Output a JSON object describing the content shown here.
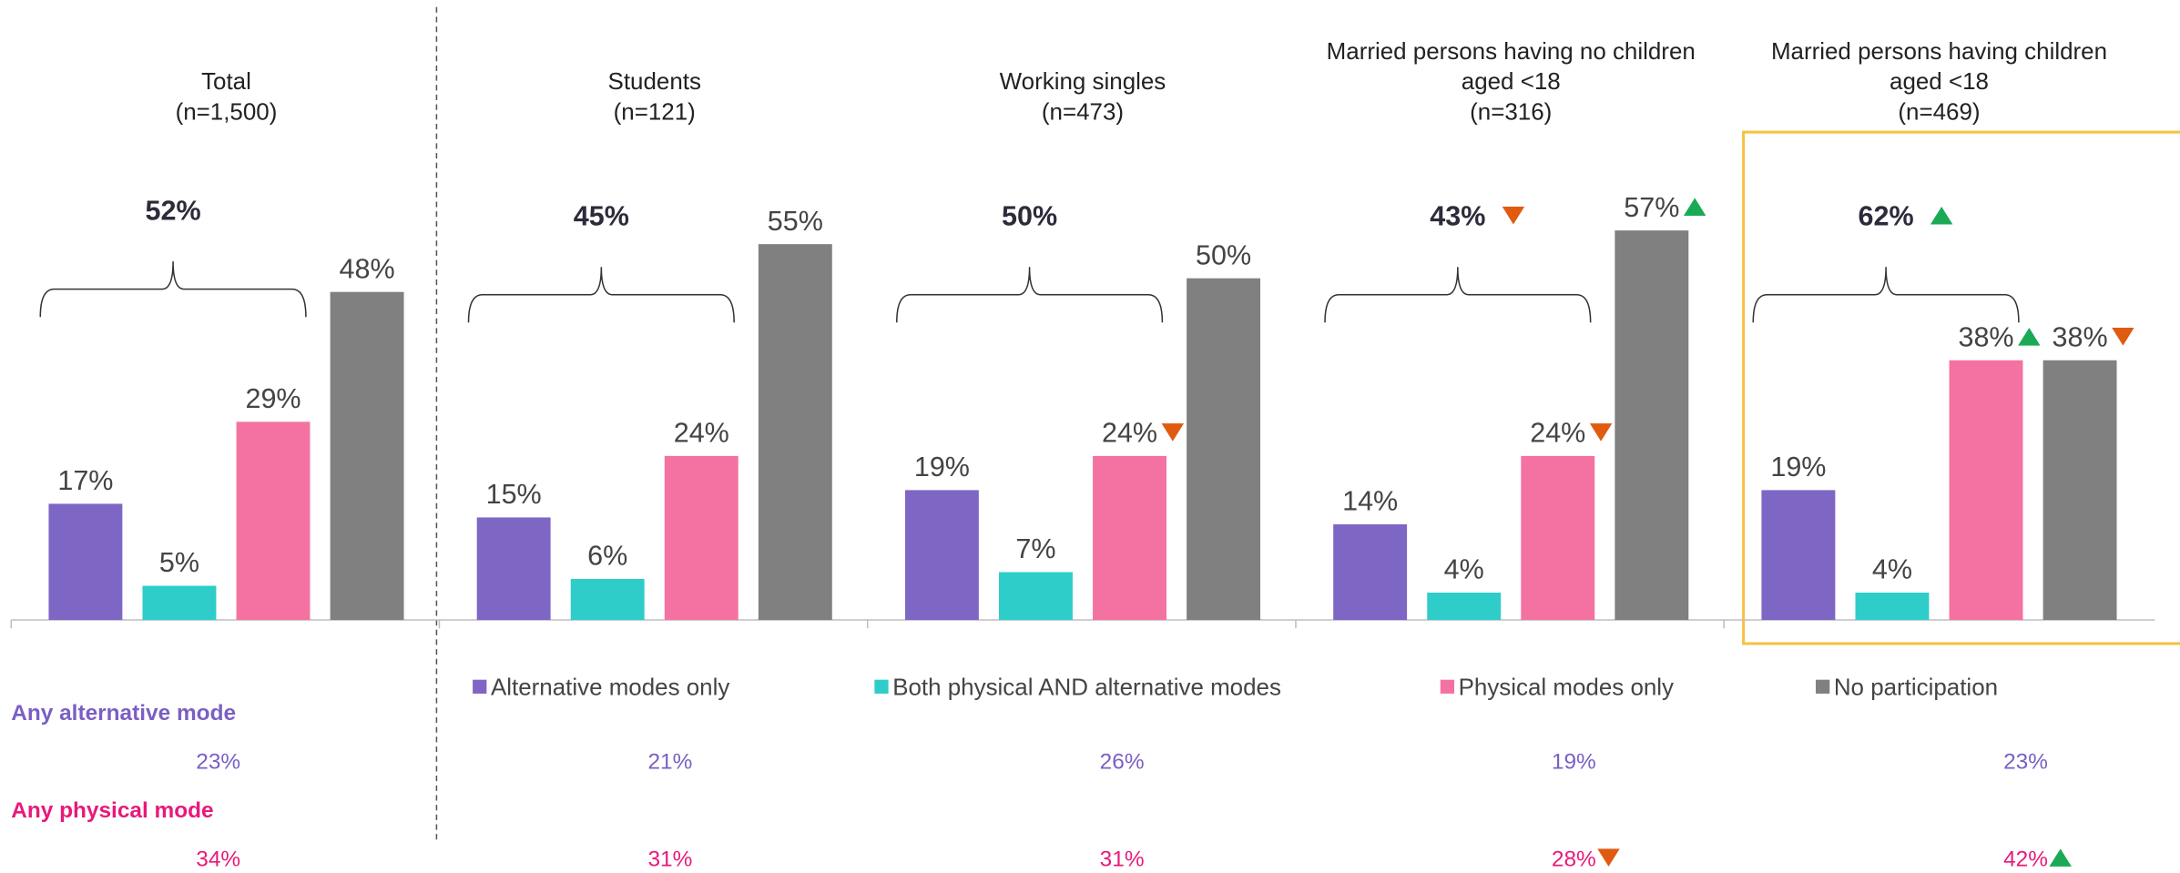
{
  "chart_data": {
    "type": "bar",
    "categories": [
      "Total",
      "Students",
      "Working singles",
      "Married persons having no children aged <18",
      "Married persons having children aged <18"
    ],
    "sample_sizes": [
      "(n=1,500)",
      "(n=121)",
      "(n=473)",
      "(n=316)",
      "(n=469)"
    ],
    "ylim": [
      0,
      60
    ],
    "highlight_category": 4,
    "series": [
      {
        "name": "Alternative modes only",
        "color": "#7e66c4",
        "values": [
          17,
          15,
          19,
          14,
          19
        ],
        "value_labels": [
          "17%",
          "15%",
          "19%",
          "14%",
          "19%"
        ],
        "markers": [
          null,
          null,
          null,
          null,
          null
        ]
      },
      {
        "name": "Both physical AND alternative modes",
        "color": "#2ecdca",
        "values": [
          5,
          6,
          7,
          4,
          4
        ],
        "value_labels": [
          "5%",
          "6%",
          "7%",
          "4%",
          "4%"
        ],
        "markers": [
          null,
          null,
          null,
          null,
          null
        ]
      },
      {
        "name": "Physical modes only",
        "color": "#f472a1",
        "values": [
          29,
          24,
          24,
          24,
          38
        ],
        "value_labels": [
          "29%",
          "24%",
          "24%",
          "24%",
          "38%"
        ],
        "markers": [
          null,
          null,
          "down",
          "down",
          "up"
        ]
      },
      {
        "name": "No participation",
        "color": "#808080",
        "values": [
          48,
          55,
          50,
          57,
          38
        ],
        "value_labels": [
          "48%",
          "55%",
          "50%",
          "57%",
          "38%"
        ],
        "markers": [
          null,
          null,
          null,
          "up",
          "down"
        ]
      }
    ],
    "totals": {
      "values": [
        52,
        45,
        50,
        43,
        62
      ],
      "value_labels": [
        "52%",
        "45%",
        "50%",
        "43%",
        "62%"
      ],
      "markers": [
        null,
        null,
        null,
        "down",
        "up"
      ]
    },
    "rows": [
      {
        "name": "Any alternative mode",
        "color": "#7b5fc4",
        "values": [
          23,
          21,
          26,
          19,
          23
        ],
        "value_labels": [
          "23%",
          "21%",
          "26%",
          "19%",
          "23%"
        ],
        "markers": [
          null,
          null,
          null,
          null,
          null
        ]
      },
      {
        "name": "Any physical mode",
        "color": "#e8197a",
        "values": [
          34,
          31,
          31,
          28,
          42
        ],
        "value_labels": [
          "34%",
          "31%",
          "31%",
          "28%",
          "42%"
        ],
        "markers": [
          null,
          null,
          null,
          "down",
          "up"
        ]
      }
    ],
    "marker_colors": {
      "up": "#1aaa55",
      "down": "#e05a10"
    }
  }
}
